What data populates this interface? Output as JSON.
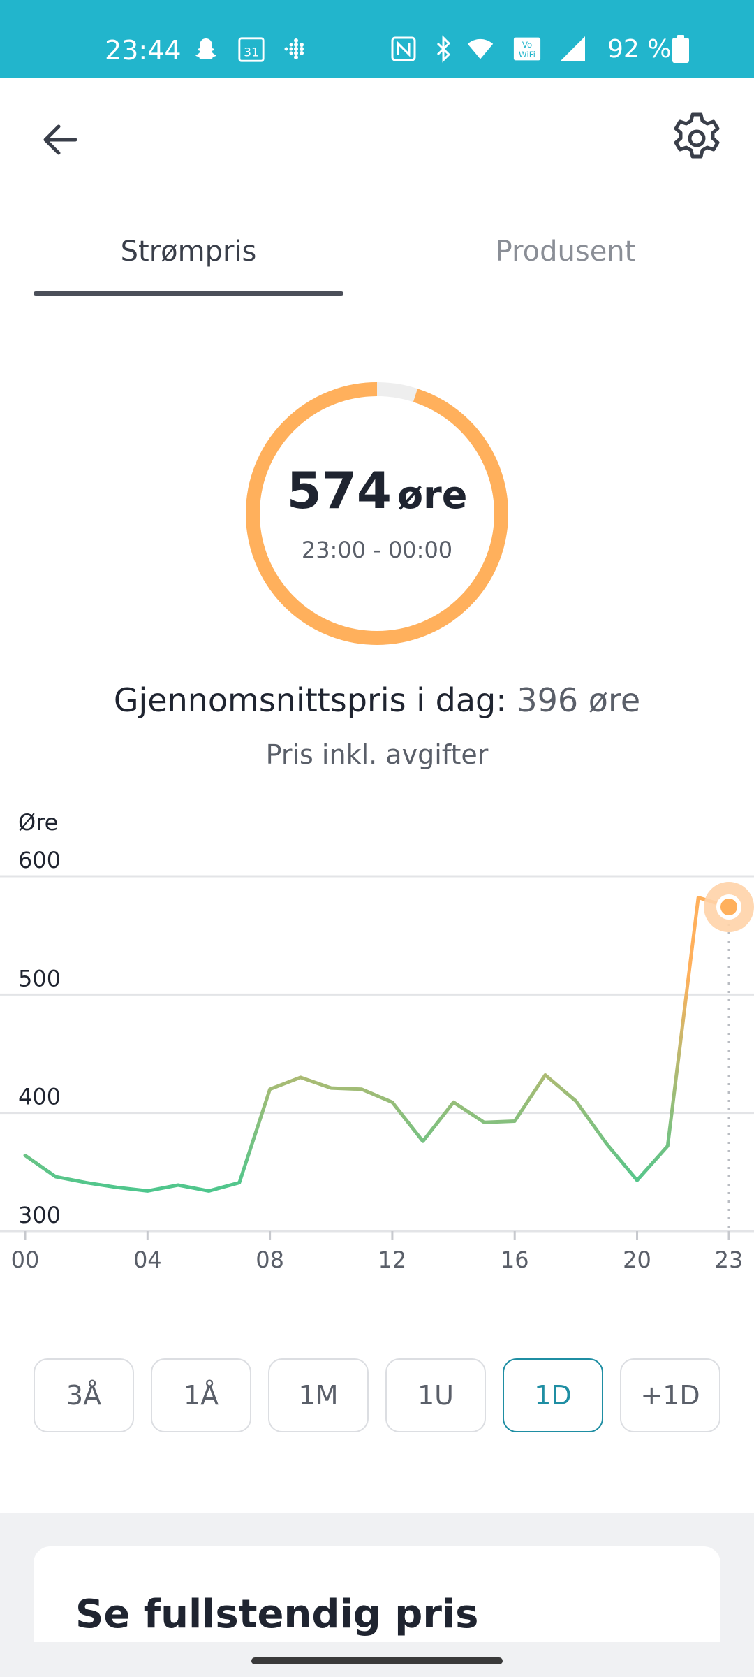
{
  "status_bar": {
    "time": "23:44",
    "calendar_day": "31",
    "battery": "92 %",
    "icons": [
      "snapchat-icon",
      "calendar-icon",
      "fitbit-icon",
      "nfc-icon",
      "bluetooth-icon",
      "wifi-icon",
      "vowifi-icon",
      "signal-icon",
      "battery-icon"
    ]
  },
  "app_bar": {
    "back_icon": "arrow-back-icon",
    "settings_icon": "gear-icon"
  },
  "tabs": [
    {
      "label": "Strømpris",
      "active": true
    },
    {
      "label": "Produsent",
      "active": false
    }
  ],
  "gauge": {
    "value": "574",
    "unit": "øre",
    "time_range": "23:00 - 00:00",
    "fill_fraction": 0.95,
    "color": "#ffb05c",
    "track_color": "#eeeeee"
  },
  "average": {
    "label": "Gjennomsnittspris i dag:",
    "value": "396 øre"
  },
  "price_note": "Pris inkl. avgifter",
  "chart_data": {
    "type": "line",
    "ylabel": "Øre",
    "ylim": [
      300,
      600
    ],
    "y_ticks": [
      "600",
      "500",
      "400",
      "300"
    ],
    "x_tick_labels": [
      "00",
      "04",
      "08",
      "12",
      "16",
      "20",
      "23"
    ],
    "x_ticks": [
      0,
      4,
      8,
      12,
      16,
      20,
      23
    ],
    "x": [
      0,
      1,
      2,
      3,
      4,
      5,
      6,
      7,
      8,
      9,
      10,
      11,
      12,
      13,
      14,
      15,
      16,
      17,
      18,
      19,
      20,
      21,
      22,
      23
    ],
    "values": [
      364,
      346,
      341,
      337,
      334,
      339,
      334,
      341,
      420,
      430,
      421,
      420,
      409,
      376,
      409,
      392,
      393,
      432,
      410,
      374,
      343,
      372,
      582,
      574
    ],
    "highlight_index": 23,
    "colors": {
      "low": "#22cc99",
      "high": "#ffb05c"
    }
  },
  "ranges": [
    {
      "label": "3Å",
      "selected": false
    },
    {
      "label": "1Å",
      "selected": false
    },
    {
      "label": "1M",
      "selected": false
    },
    {
      "label": "1U",
      "selected": false
    },
    {
      "label": "1D",
      "selected": true
    },
    {
      "label": "+1D",
      "selected": false
    }
  ],
  "card": {
    "title": "Se fullstendig pris"
  }
}
